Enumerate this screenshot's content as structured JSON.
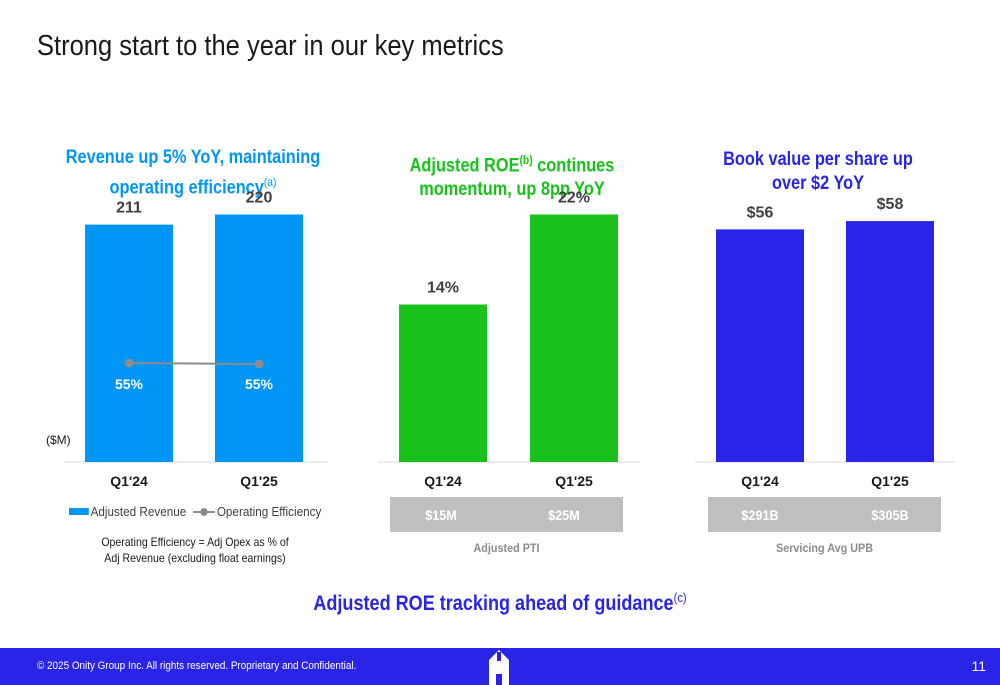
{
  "slide": {
    "title": "Strong start to the year in our key metrics",
    "banner_text": "Adjusted ROE tracking ahead of guidance",
    "banner_sup": "(c)"
  },
  "panels": {
    "revenue": {
      "heading_line1": "Revenue up 5% YoY, maintaining",
      "heading_line2": "operating efficiency",
      "heading_sup": "(a)",
      "unit_label": "($M)",
      "legend_bar": "Adjusted Revenue",
      "legend_line": "Operating Efficiency",
      "definition_line1": "Operating Efficiency = Adj Opex as % of",
      "definition_line2": "Adj Revenue (excluding float earnings)"
    },
    "roe": {
      "heading_line1": "Adjusted ROE",
      "heading_sup": "(b)",
      "heading_line1_rest": " continues",
      "heading_line2": "momentum, up 8pp YoY",
      "metric_values": [
        "$15M",
        "$25M"
      ],
      "metric_caption": "Adjusted PTI"
    },
    "bvps": {
      "heading_line1": "Book value per share up",
      "heading_line2": "over $2 YoY",
      "metric_values": [
        "$291B",
        "$305B"
      ],
      "metric_caption": "Servicing Avg UPB"
    }
  },
  "colors": {
    "revenue_bar": "#0096f5",
    "roe_bar": "#18c21a",
    "bvps_bar": "#2a24e6",
    "efficiency_line": "#8c8c8c",
    "axis": "#d9d9d9"
  },
  "chart_data": [
    {
      "type": "bar",
      "title": "Revenue up 5% YoY, maintaining operating efficiency",
      "categories": [
        "Q1'24",
        "Q1'25"
      ],
      "series": [
        {
          "name": "Adjusted Revenue",
          "values": [
            211,
            220
          ],
          "labels": [
            "211",
            "220"
          ]
        },
        {
          "name": "Operating Efficiency",
          "type": "line",
          "values": [
            55,
            55
          ],
          "labels": [
            "55%",
            "55%"
          ]
        }
      ],
      "ylabel": "($M)",
      "ylim": [
        0,
        240
      ],
      "line_ylim": [
        0,
        150
      ],
      "legend": "bottom"
    },
    {
      "type": "bar",
      "title": "Adjusted ROE continues momentum, up 8pp YoY",
      "categories": [
        "Q1'24",
        "Q1'25"
      ],
      "values": [
        14,
        22
      ],
      "labels": [
        "14%",
        "22%"
      ],
      "ylim": [
        0,
        24
      ]
    },
    {
      "type": "bar",
      "title": "Book value per share up over $2 YoY",
      "categories": [
        "Q1'24",
        "Q1'25"
      ],
      "values": [
        56,
        58
      ],
      "labels": [
        "$56",
        "$58"
      ],
      "ylim": [
        0,
        65
      ]
    }
  ],
  "footer": {
    "copyright": "© 2025 Onity Group Inc. All rights reserved. Proprietary and Confidential.",
    "page_number": "11"
  }
}
